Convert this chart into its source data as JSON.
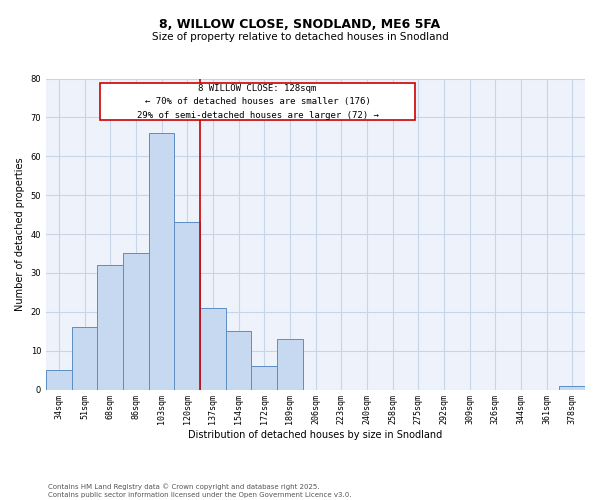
{
  "title": "8, WILLOW CLOSE, SNODLAND, ME6 5FA",
  "subtitle": "Size of property relative to detached houses in Snodland",
  "xlabel": "Distribution of detached houses by size in Snodland",
  "ylabel": "Number of detached properties",
  "bar_labels": [
    "34sqm",
    "51sqm",
    "68sqm",
    "86sqm",
    "103sqm",
    "120sqm",
    "137sqm",
    "154sqm",
    "172sqm",
    "189sqm",
    "206sqm",
    "223sqm",
    "240sqm",
    "258sqm",
    "275sqm",
    "292sqm",
    "309sqm",
    "326sqm",
    "344sqm",
    "361sqm",
    "378sqm"
  ],
  "bar_values": [
    5,
    16,
    32,
    35,
    66,
    43,
    21,
    15,
    6,
    13,
    0,
    0,
    0,
    0,
    0,
    0,
    0,
    0,
    0,
    0,
    1
  ],
  "bar_color": "#c6d9f0",
  "bar_edge_color": "#5b8ec4",
  "ylim": [
    0,
    80
  ],
  "yticks": [
    0,
    10,
    20,
    30,
    40,
    50,
    60,
    70,
    80
  ],
  "vline_x": 5.5,
  "vline_color": "#cc0000",
  "annotation_title": "8 WILLOW CLOSE: 128sqm",
  "annotation_line2": "← 70% of detached houses are smaller (176)",
  "annotation_line3": "29% of semi-detached houses are larger (72) →",
  "annotation_box_color": "#cc0000",
  "grid_color": "#c8d4e8",
  "bg_color": "#eef2fa",
  "footer_line1": "Contains HM Land Registry data © Crown copyright and database right 2025.",
  "footer_line2": "Contains public sector information licensed under the Open Government Licence v3.0.",
  "title_fontsize": 9,
  "subtitle_fontsize": 7.5,
  "axis_label_fontsize": 7,
  "tick_fontsize": 6,
  "annotation_fontsize": 6.5,
  "footer_fontsize": 5
}
